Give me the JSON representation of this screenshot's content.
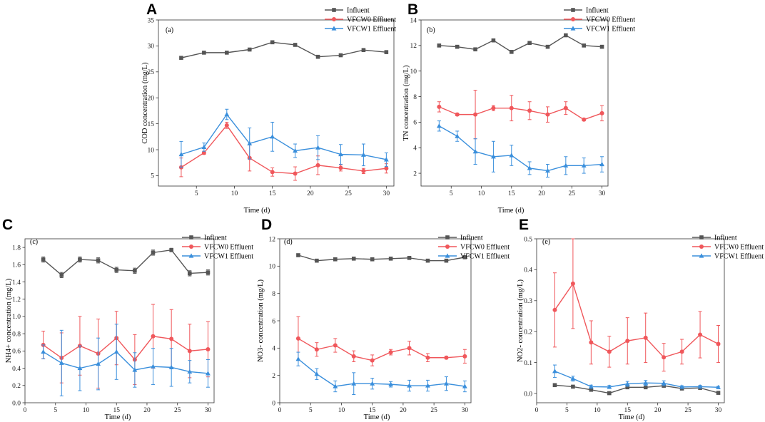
{
  "figure": {
    "colors": {
      "influent": "#555555",
      "vfcw0": "#f0575b",
      "vfcw1": "#3a8fdc",
      "axis": "#333333"
    }
  },
  "chart_data": [
    {
      "type": "line",
      "panel": "A",
      "title": "(a)",
      "xlabel": "Time (d)",
      "ylabel": "COD concentration (mg/L)",
      "xlim": [
        0,
        31
      ],
      "ylim": [
        3,
        35
      ],
      "xticks": [
        5,
        10,
        15,
        20,
        25,
        30
      ],
      "yticks": [
        5,
        10,
        15,
        20,
        25,
        30,
        35
      ],
      "x": [
        3,
        6,
        9,
        12,
        15,
        18,
        21,
        24,
        27,
        30
      ],
      "series": [
        {
          "name": "Influent",
          "values": [
            27.7,
            28.7,
            28.7,
            29.3,
            30.7,
            30.2,
            27.9,
            28.2,
            29.2,
            28.8
          ],
          "errors": []
        },
        {
          "name": "VFCW0 Effluent",
          "values": [
            6.6,
            9.4,
            14.7,
            8.4,
            5.7,
            5.4,
            7.0,
            6.5,
            5.9,
            6.4
          ],
          "errors": [
            1.8,
            0.3,
            0.6,
            2.5,
            0.8,
            1.3,
            1.8,
            0.6,
            0.5,
            0.9
          ]
        },
        {
          "name": "VFCW1 Effluent",
          "values": [
            9.1,
            10.5,
            16.8,
            11.2,
            12.5,
            9.8,
            10.4,
            9.1,
            9.0,
            8.1
          ],
          "errors": [
            2.5,
            0.8,
            1.0,
            3.0,
            2.8,
            1.3,
            2.3,
            1.9,
            2.1,
            1.3
          ]
        }
      ]
    },
    {
      "type": "line",
      "panel": "B",
      "title": "(b)",
      "xlabel": "Time (d)",
      "ylabel": "TN concentration (mg/L)",
      "xlim": [
        0,
        31
      ],
      "ylim": [
        1,
        14
      ],
      "xticks": [
        5,
        10,
        15,
        20,
        25,
        30
      ],
      "yticks": [
        2,
        4,
        6,
        8,
        10,
        12,
        14
      ],
      "x": [
        3,
        6,
        9,
        12,
        15,
        18,
        21,
        24,
        27,
        30
      ],
      "series": [
        {
          "name": "Influent",
          "values": [
            12.0,
            11.9,
            11.7,
            12.4,
            11.5,
            12.2,
            11.9,
            12.8,
            12.0,
            11.9
          ],
          "errors": []
        },
        {
          "name": "VFCW0 Effluent",
          "values": [
            7.2,
            6.6,
            6.6,
            7.1,
            7.1,
            6.9,
            6.6,
            7.1,
            6.2,
            6.7
          ],
          "errors": [
            0.4,
            0.1,
            1.9,
            0.2,
            1.0,
            0.7,
            0.6,
            0.5,
            0.1,
            0.6
          ]
        },
        {
          "name": "VFCW1 Effluent",
          "values": [
            5.7,
            4.9,
            3.7,
            3.3,
            3.4,
            2.4,
            2.2,
            2.6,
            2.6,
            2.7
          ],
          "errors": [
            0.4,
            0.4,
            1.0,
            1.2,
            0.8,
            0.5,
            0.5,
            0.7,
            0.6,
            0.6
          ]
        }
      ]
    },
    {
      "type": "line",
      "panel": "C",
      "title": "(c)",
      "xlabel": "Time (d)",
      "ylabel": "NH4+ concentration (mg/L)",
      "xlim": [
        0,
        31
      ],
      "ylim": [
        0,
        1.9
      ],
      "xticks": [
        0,
        5,
        10,
        15,
        20,
        25,
        30
      ],
      "yticks": [
        0.0,
        0.2,
        0.4,
        0.6,
        0.8,
        1.0,
        1.2,
        1.4,
        1.6,
        1.8
      ],
      "x": [
        3,
        6,
        9,
        12,
        15,
        18,
        21,
        24,
        27,
        30
      ],
      "series": [
        {
          "name": "Influent",
          "values": [
            1.66,
            1.48,
            1.66,
            1.65,
            1.54,
            1.53,
            1.74,
            1.77,
            1.5,
            1.51
          ],
          "errors": [
            0.03,
            0.03,
            0.03,
            0.03,
            0.03,
            0.03,
            0.03,
            0.02,
            0.03,
            0.03
          ]
        },
        {
          "name": "VFCW0 Effluent",
          "values": [
            0.67,
            0.52,
            0.66,
            0.57,
            0.75,
            0.5,
            0.77,
            0.74,
            0.6,
            0.62
          ],
          "errors": [
            0.16,
            0.29,
            0.34,
            0.4,
            0.31,
            0.29,
            0.37,
            0.34,
            0.31,
            0.32
          ]
        },
        {
          "name": "VFCW1 Effluent",
          "values": [
            0.59,
            0.46,
            0.4,
            0.45,
            0.59,
            0.38,
            0.42,
            0.41,
            0.36,
            0.34
          ],
          "errors": [
            0.08,
            0.38,
            0.26,
            0.3,
            0.32,
            0.2,
            0.21,
            0.22,
            0.13,
            0.16
          ]
        }
      ]
    },
    {
      "type": "line",
      "panel": "D",
      "title": "(d)",
      "xlabel": "Time (d)",
      "ylabel": "NO3- concentration (mg/L)",
      "xlim": [
        0,
        31
      ],
      "ylim": [
        0,
        12
      ],
      "xticks": [
        0,
        5,
        10,
        15,
        20,
        25,
        30
      ],
      "yticks": [
        0,
        2,
        4,
        6,
        8,
        10,
        12
      ],
      "x": [
        3,
        6,
        9,
        12,
        15,
        18,
        21,
        24,
        27,
        30
      ],
      "series": [
        {
          "name": "Influent",
          "values": [
            10.8,
            10.4,
            10.5,
            10.55,
            10.5,
            10.55,
            10.6,
            10.4,
            10.4,
            10.65
          ],
          "errors": []
        },
        {
          "name": "VFCW0 Effluent",
          "values": [
            4.7,
            3.9,
            4.2,
            3.4,
            3.1,
            3.7,
            4.0,
            3.3,
            3.3,
            3.4
          ],
          "errors": [
            1.6,
            0.5,
            0.5,
            0.4,
            0.4,
            0.2,
            0.5,
            0.3,
            0.1,
            0.5
          ]
        },
        {
          "name": "VFCW1 Effluent",
          "values": [
            3.2,
            2.1,
            1.2,
            1.4,
            1.4,
            1.35,
            1.25,
            1.25,
            1.4,
            1.2
          ],
          "errors": [
            0.5,
            0.4,
            0.4,
            0.8,
            0.4,
            0.2,
            0.4,
            0.4,
            0.5,
            0.4
          ]
        }
      ]
    },
    {
      "type": "line",
      "panel": "E",
      "title": "(e)",
      "xlabel": "Time (d)",
      "ylabel": "NO2- concentration (mg/L)",
      "xlim": [
        0,
        31
      ],
      "ylim": [
        -0.03,
        0.5
      ],
      "xticks": [
        0,
        5,
        10,
        15,
        20,
        25,
        30
      ],
      "yticks": [
        0.0,
        0.1,
        0.2,
        0.3,
        0.4,
        0.5
      ],
      "x": [
        3,
        6,
        9,
        12,
        15,
        18,
        21,
        24,
        27,
        30
      ],
      "series": [
        {
          "name": "Influent",
          "values": [
            0.027,
            0.022,
            0.012,
            0.001,
            0.02,
            0.02,
            0.025,
            0.016,
            0.018,
            0.002
          ],
          "errors": []
        },
        {
          "name": "VFCW0 Effluent",
          "values": [
            0.27,
            0.355,
            0.165,
            0.135,
            0.17,
            0.18,
            0.117,
            0.135,
            0.19,
            0.16
          ],
          "errors": [
            0.12,
            0.145,
            0.07,
            0.05,
            0.075,
            0.08,
            0.045,
            0.04,
            0.075,
            0.06
          ]
        },
        {
          "name": "VFCW1 Effluent",
          "values": [
            0.072,
            0.048,
            0.022,
            0.021,
            0.031,
            0.034,
            0.033,
            0.021,
            0.022,
            0.02
          ],
          "errors": [
            0.02,
            0.008,
            0.005,
            0.005,
            0.008,
            0.008,
            0.008,
            0.004,
            0.004,
            0.003
          ]
        }
      ]
    }
  ]
}
